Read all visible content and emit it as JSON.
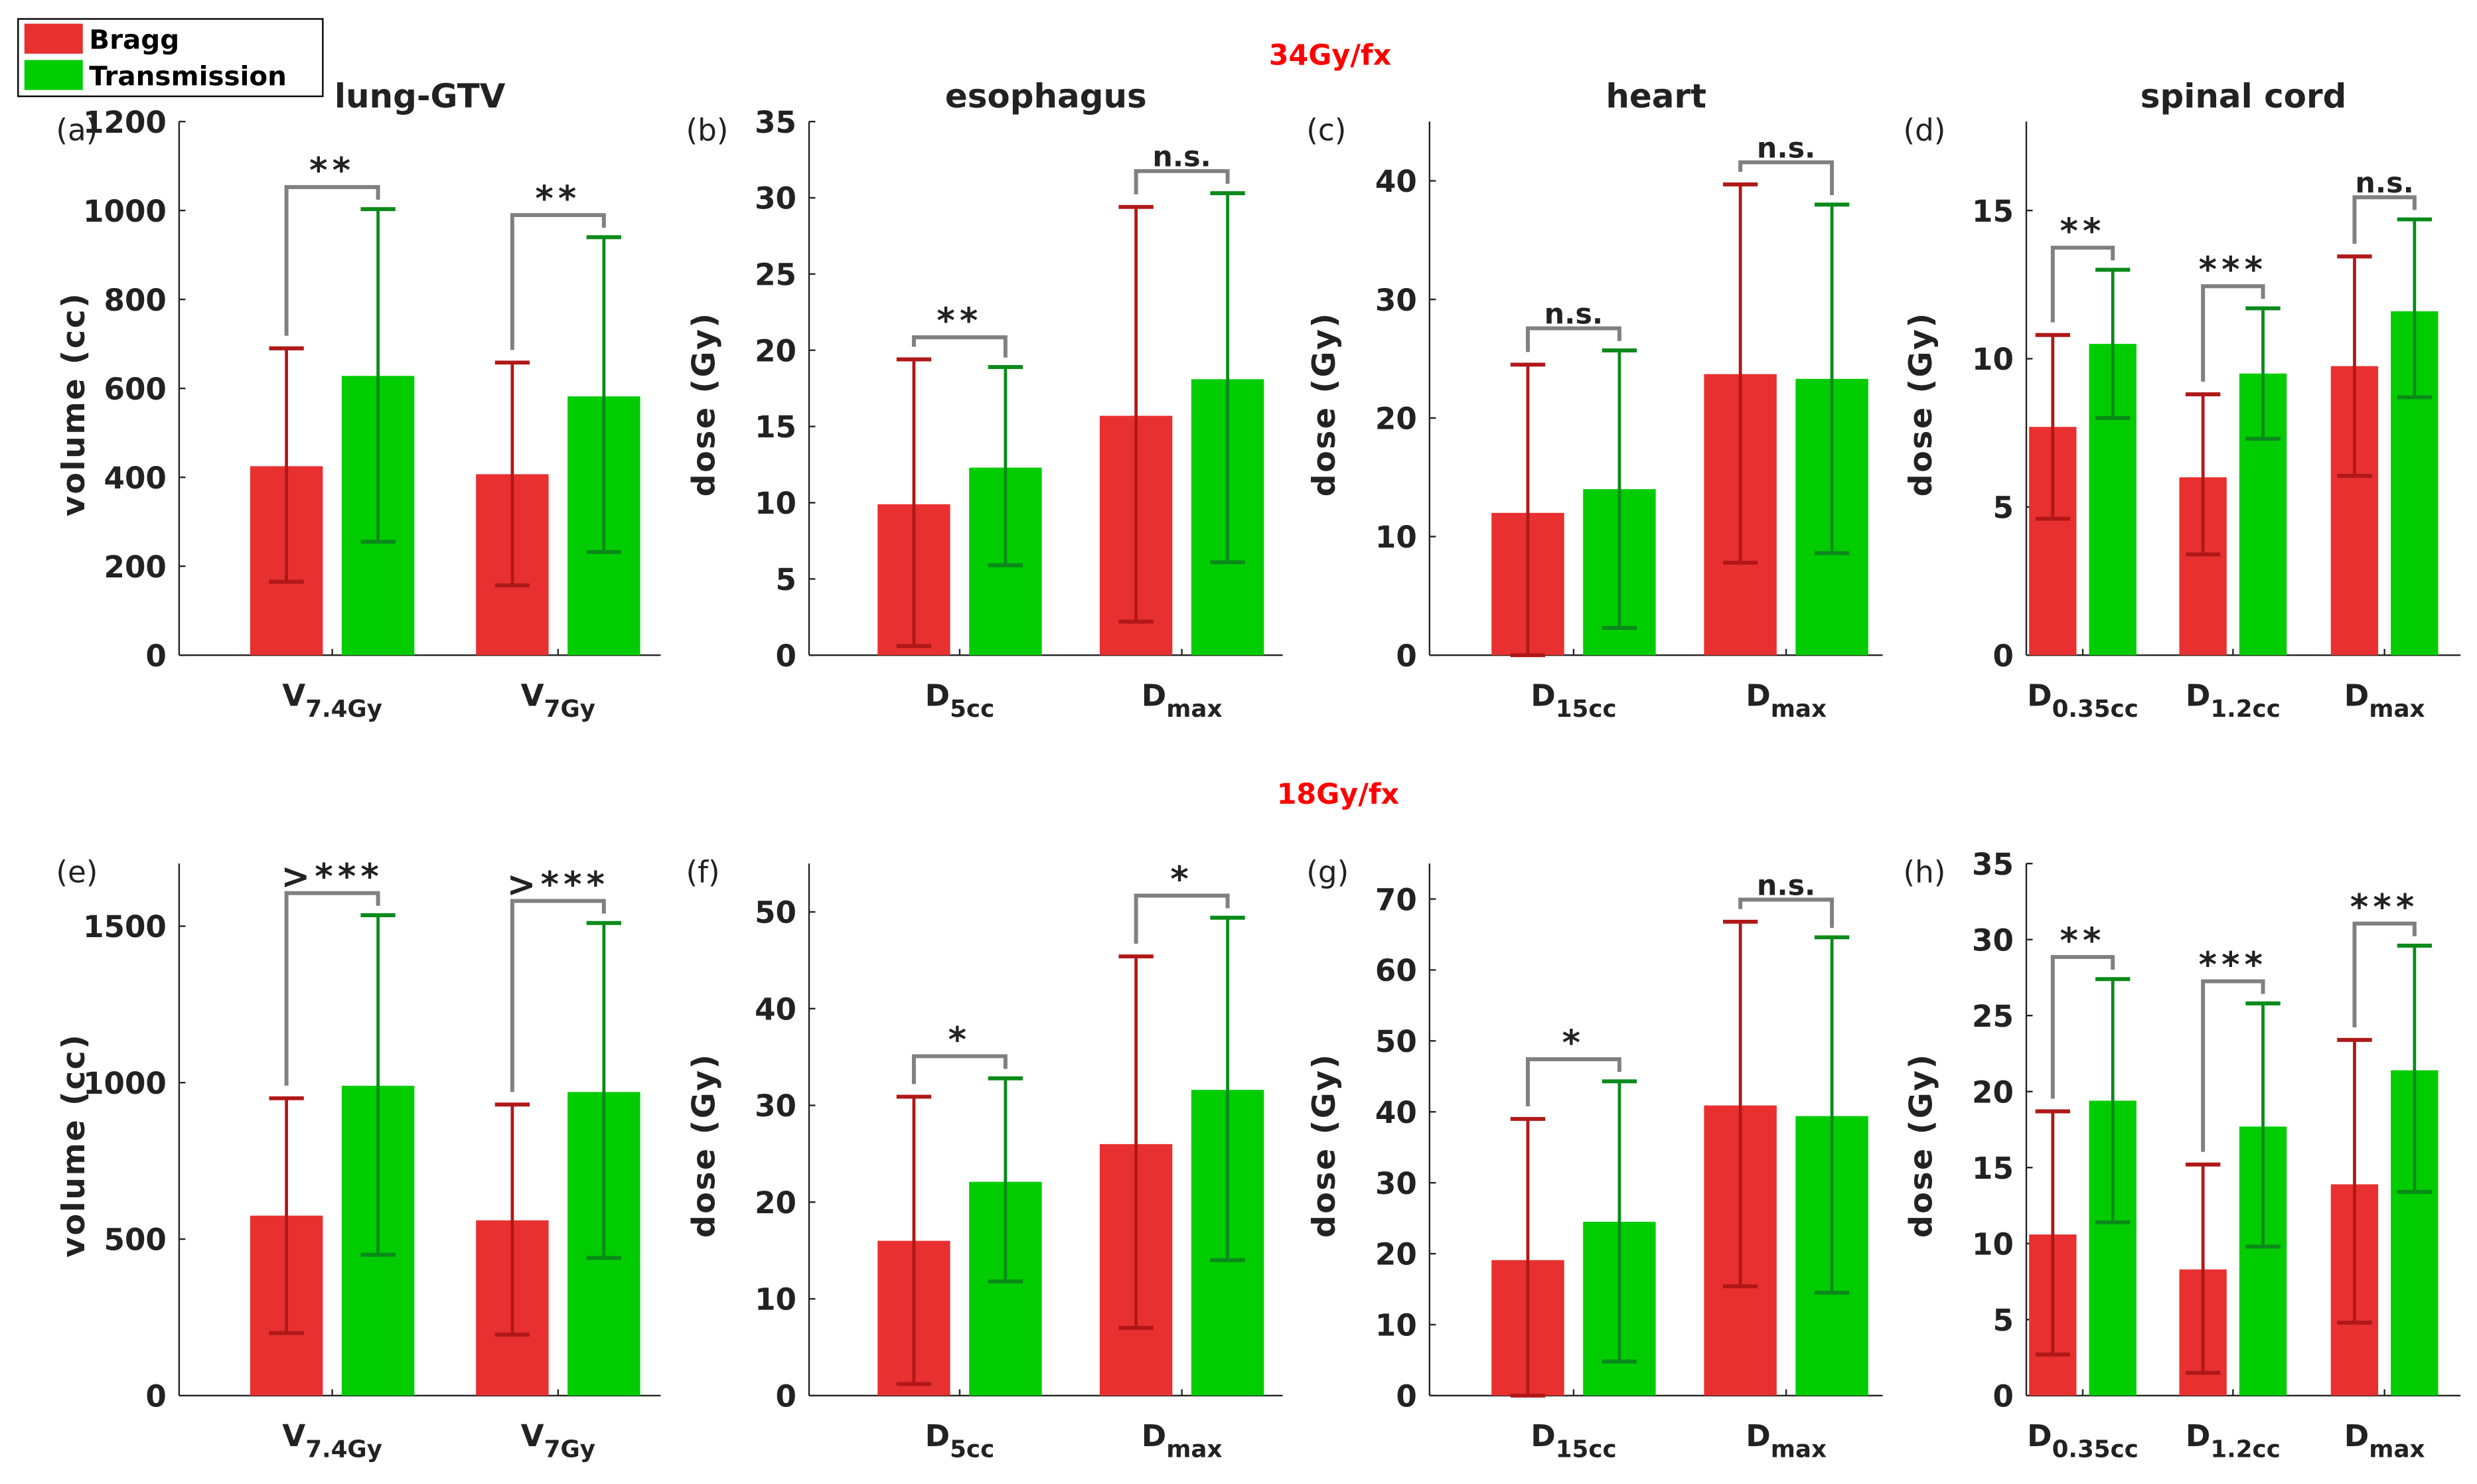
{
  "colors": {
    "bragg": "#e83030",
    "transmission": "#00cc00",
    "bragg_err": "#b01818",
    "trans_err": "#0a8a1a",
    "bracket": "#808080",
    "section": "#ff0000"
  },
  "legend": {
    "items": [
      "Bragg",
      "Transmission"
    ]
  },
  "sections": [
    "34Gy/fx",
    "18Gy/fx"
  ],
  "chart_data": [
    {
      "type": "bar",
      "panel": "(a)",
      "title": "lung-GTV",
      "ylabel": "volume (cc)",
      "ylim": [
        0,
        1200
      ],
      "yticks": [
        0,
        200,
        400,
        600,
        800,
        1000,
        1200
      ],
      "categories": [
        {
          "main": "V",
          "sub": "7.4Gy"
        },
        {
          "main": "V",
          "sub": "7Gy"
        }
      ],
      "series": [
        {
          "name": "Bragg",
          "values": [
            425,
            407
          ],
          "err_low": [
            165,
            157
          ],
          "err_high": [
            690,
            658
          ]
        },
        {
          "name": "Transmission",
          "values": [
            628,
            582
          ],
          "err_low": [
            255,
            232
          ],
          "err_high": [
            1003,
            940
          ]
        }
      ],
      "significance": [
        "**",
        "**"
      ]
    },
    {
      "type": "bar",
      "panel": "(b)",
      "title": "esophagus",
      "ylabel": "dose (Gy)",
      "ylim": [
        0,
        35
      ],
      "yticks": [
        0,
        5,
        10,
        15,
        20,
        25,
        30,
        35
      ],
      "categories": [
        {
          "main": "D",
          "sub": "5cc"
        },
        {
          "main": "D",
          "sub": "max"
        }
      ],
      "series": [
        {
          "name": "Bragg",
          "values": [
            9.9,
            15.7
          ],
          "err_low": [
            0.6,
            2.2
          ],
          "err_high": [
            19.4,
            29.4
          ]
        },
        {
          "name": "Transmission",
          "values": [
            12.3,
            18.1
          ],
          "err_low": [
            5.9,
            6.1
          ],
          "err_high": [
            18.9,
            30.3
          ]
        }
      ],
      "significance": [
        "**",
        "n.s."
      ]
    },
    {
      "type": "bar",
      "panel": "(c)",
      "title": "heart",
      "ylabel": "dose (Gy)",
      "ylim": [
        0,
        45
      ],
      "yticks": [
        0,
        10,
        20,
        30,
        40
      ],
      "categories": [
        {
          "main": "D",
          "sub": "15cc"
        },
        {
          "main": "D",
          "sub": "max"
        }
      ],
      "series": [
        {
          "name": "Bragg",
          "values": [
            12.0,
            23.7
          ],
          "err_low": [
            0,
            7.8
          ],
          "err_high": [
            24.5,
            39.7
          ]
        },
        {
          "name": "Transmission",
          "values": [
            14.0,
            23.3
          ],
          "err_low": [
            2.3,
            8.6
          ],
          "err_high": [
            25.7,
            38.0
          ]
        }
      ],
      "significance": [
        "n.s.",
        "n.s."
      ]
    },
    {
      "type": "bar",
      "panel": "(d)",
      "title": "spinal cord",
      "ylabel": "dose (Gy)",
      "ylim": [
        0,
        18
      ],
      "yticks": [
        0,
        5,
        10,
        15
      ],
      "categories": [
        {
          "main": "D",
          "sub": "0.35cc"
        },
        {
          "main": "D",
          "sub": "1.2cc"
        },
        {
          "main": "D",
          "sub": "max"
        }
      ],
      "series": [
        {
          "name": "Bragg",
          "values": [
            7.7,
            6.0,
            9.75
          ],
          "err_low": [
            4.6,
            3.4,
            6.05
          ],
          "err_high": [
            10.8,
            8.8,
            13.45
          ]
        },
        {
          "name": "Transmission",
          "values": [
            10.5,
            9.5,
            11.6
          ],
          "err_low": [
            8.0,
            7.3,
            8.7
          ],
          "err_high": [
            13.0,
            11.7,
            14.7
          ]
        }
      ],
      "significance": [
        "**",
        "***",
        "n.s."
      ]
    },
    {
      "type": "bar",
      "panel": "(e)",
      "title": "",
      "ylabel": "volume (cc)",
      "ylim": [
        0,
        1700
      ],
      "yticks": [
        0,
        500,
        1000,
        1500
      ],
      "categories": [
        {
          "main": "V",
          "sub": "7.4Gy"
        },
        {
          "main": "V",
          "sub": "7Gy"
        }
      ],
      "series": [
        {
          "name": "Bragg",
          "values": [
            575,
            560
          ],
          "err_low": [
            200,
            195
          ],
          "err_high": [
            950,
            930
          ]
        },
        {
          "name": "Transmission",
          "values": [
            990,
            970
          ],
          "err_low": [
            450,
            440
          ],
          "err_high": [
            1535,
            1510
          ]
        }
      ],
      "significance": [
        ">***",
        ">***"
      ]
    },
    {
      "type": "bar",
      "panel": "(f)",
      "title": "",
      "ylabel": "dose (Gy)",
      "ylim": [
        0,
        55
      ],
      "yticks": [
        0,
        10,
        20,
        30,
        40,
        50
      ],
      "categories": [
        {
          "main": "D",
          "sub": "5cc"
        },
        {
          "main": "D",
          "sub": "max"
        }
      ],
      "series": [
        {
          "name": "Bragg",
          "values": [
            16.0,
            26.0
          ],
          "err_low": [
            1.2,
            7.0
          ],
          "err_high": [
            30.9,
            45.4
          ]
        },
        {
          "name": "Transmission",
          "values": [
            22.1,
            31.6
          ],
          "err_low": [
            11.8,
            14.0
          ],
          "err_high": [
            32.8,
            49.4
          ]
        }
      ],
      "significance": [
        "*",
        "*"
      ]
    },
    {
      "type": "bar",
      "panel": "(g)",
      "title": "",
      "ylabel": "dose (Gy)",
      "ylim": [
        0,
        75
      ],
      "yticks": [
        0,
        10,
        20,
        30,
        40,
        50,
        60,
        70
      ],
      "categories": [
        {
          "main": "D",
          "sub": "15cc"
        },
        {
          "main": "D",
          "sub": "max"
        }
      ],
      "series": [
        {
          "name": "Bragg",
          "values": [
            19.1,
            40.9
          ],
          "err_low": [
            0,
            15.4
          ],
          "err_high": [
            39.0,
            66.8
          ]
        },
        {
          "name": "Transmission",
          "values": [
            24.5,
            39.4
          ],
          "err_low": [
            4.8,
            14.5
          ],
          "err_high": [
            44.3,
            64.6
          ]
        }
      ],
      "significance": [
        "*",
        "n.s."
      ]
    },
    {
      "type": "bar",
      "panel": "(h)",
      "title": "",
      "ylabel": "dose (Gy)",
      "ylim": [
        0,
        35
      ],
      "yticks": [
        0,
        5,
        10,
        15,
        20,
        25,
        30,
        35
      ],
      "categories": [
        {
          "main": "D",
          "sub": "0.35cc"
        },
        {
          "main": "D",
          "sub": "1.2cc"
        },
        {
          "main": "D",
          "sub": "max"
        }
      ],
      "series": [
        {
          "name": "Bragg",
          "values": [
            10.6,
            8.3,
            13.9
          ],
          "err_low": [
            2.7,
            1.5,
            4.8
          ],
          "err_high": [
            18.7,
            15.2,
            23.4
          ]
        },
        {
          "name": "Transmission",
          "values": [
            19.4,
            17.7,
            21.4
          ],
          "err_low": [
            11.4,
            9.8,
            13.4
          ],
          "err_high": [
            27.4,
            25.8,
            29.6
          ]
        }
      ],
      "significance": [
        "**",
        "***",
        "***"
      ]
    }
  ]
}
